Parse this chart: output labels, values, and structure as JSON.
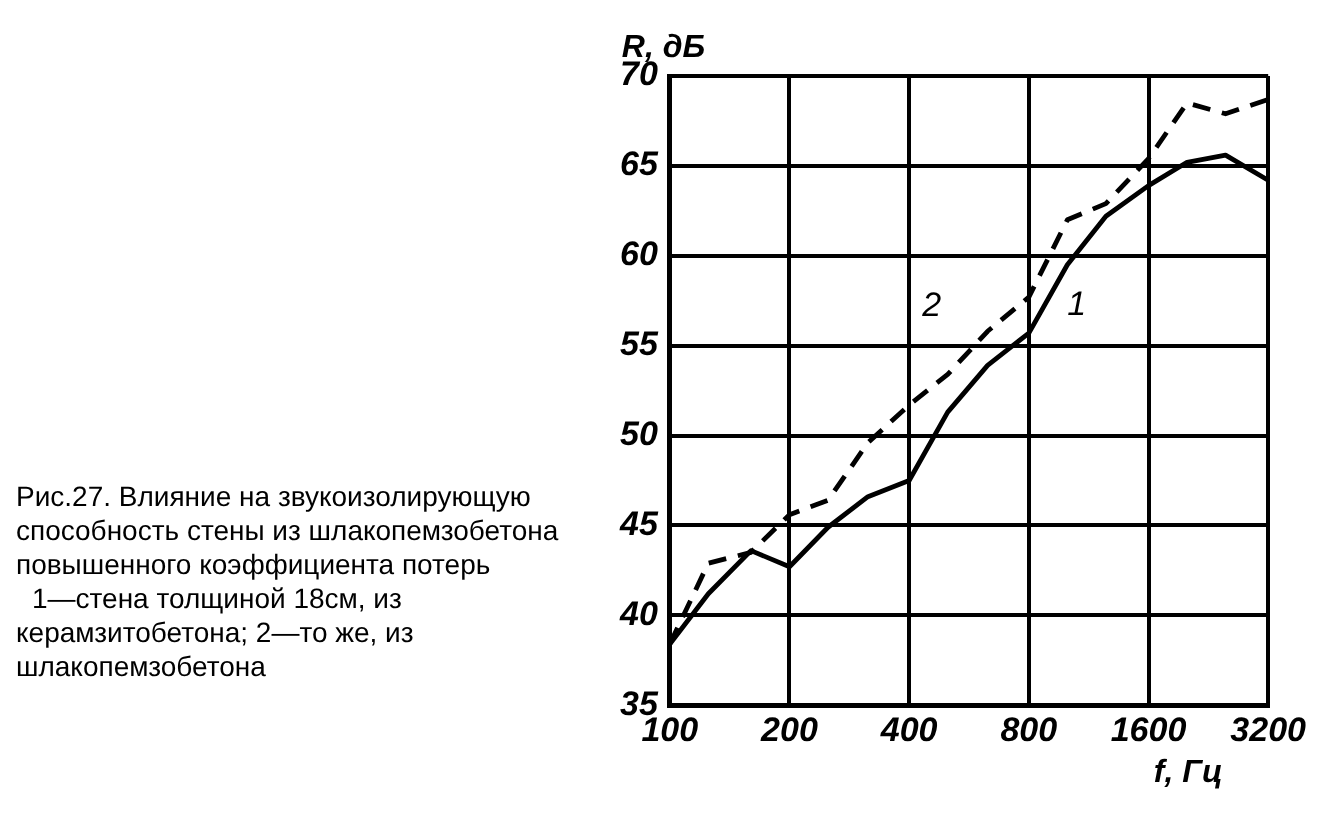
{
  "chart_data": {
    "type": "line",
    "title": "Рис.27. Влияние на звукоизолирующую способность стены из шлакопемзобетона повышенного коэффициента потерь",
    "annotations": [
      "1—стена толщиной 18см, из керамзитобетона; 2—то же, из шлакопемзобетона"
    ],
    "xlabel": "f, Гц",
    "ylabel": "R, дБ",
    "log": "x",
    "xlim": [
      100,
      3200
    ],
    "xticks": [
      100,
      200,
      400,
      800,
      1600,
      3200
    ],
    "ylim": [
      35,
      70
    ],
    "yticks": [
      35,
      40,
      45,
      50,
      55,
      60,
      65,
      70
    ],
    "grid": true,
    "legend": false,
    "marker": "none",
    "x": [
      100,
      125,
      160,
      200,
      250,
      315,
      400,
      500,
      630,
      800,
      1000,
      1250,
      1600,
      2000,
      2500,
      3200
    ],
    "series": [
      {
        "name": "1",
        "color": "#000000",
        "line_style": "solid",
        "values": [
          38.4,
          41.2,
          43.6,
          42.7,
          44.9,
          46.6,
          47.5,
          51.3,
          53.9,
          55.7,
          59.5,
          62.2,
          63.9,
          65.2,
          65.6,
          64.2
        ]
      },
      {
        "name": "2",
        "color": "#000000",
        "line_style": "dashed",
        "values": [
          38.4,
          42.9,
          43.5,
          45.6,
          46.4,
          49.6,
          51.7,
          53.4,
          55.8,
          57.7,
          62,
          62.9,
          65.4,
          68.5,
          67.9,
          68.7
        ]
      }
    ]
  }
}
